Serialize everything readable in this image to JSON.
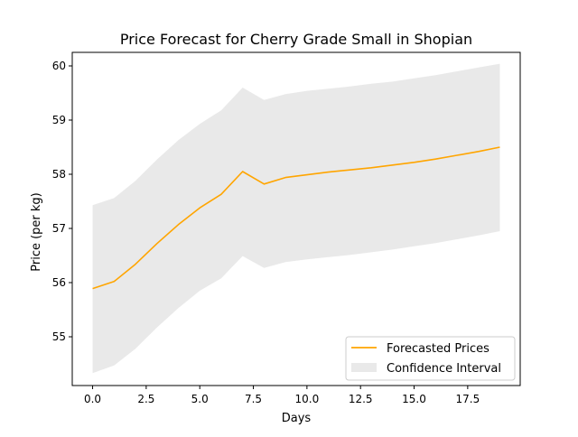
{
  "chart_data": {
    "type": "line",
    "title": "Price Forecast for Cherry Grade Small in Shopian",
    "xlabel": "Days",
    "ylabel": "Price (per kg)",
    "xlim": [
      -0.95,
      19.95
    ],
    "ylim": [
      54.1,
      60.25
    ],
    "x_ticks": [
      0.0,
      2.5,
      5.0,
      7.5,
      10.0,
      12.5,
      15.0,
      17.5
    ],
    "x_tick_labels": [
      "0.0",
      "2.5",
      "5.0",
      "7.5",
      "10.0",
      "12.5",
      "15.0",
      "17.5"
    ],
    "y_ticks": [
      55,
      56,
      57,
      58,
      59,
      60
    ],
    "y_tick_labels": [
      "55",
      "56",
      "57",
      "58",
      "59",
      "60"
    ],
    "grid": false,
    "legend_position": "lower-right",
    "x": [
      0,
      1,
      2,
      3,
      4,
      5,
      6,
      7,
      8,
      9,
      10,
      11,
      12,
      13,
      14,
      15,
      16,
      17,
      18,
      19
    ],
    "series": [
      {
        "name": "Forecasted Prices",
        "type": "line",
        "color": "#ffa500",
        "values": [
          55.89,
          56.02,
          56.34,
          56.72,
          57.07,
          57.38,
          57.63,
          58.05,
          57.82,
          57.94,
          57.99,
          58.04,
          58.08,
          58.12,
          58.17,
          58.22,
          58.28,
          58.35,
          58.42,
          58.5
        ]
      },
      {
        "name": "Confidence Interval",
        "type": "band",
        "color": "#d3d3d3",
        "lower": [
          54.33,
          54.47,
          54.78,
          55.17,
          55.53,
          55.85,
          56.08,
          56.49,
          56.27,
          56.38,
          56.43,
          56.47,
          56.51,
          56.56,
          56.61,
          56.67,
          56.73,
          56.8,
          56.87,
          56.95
        ],
        "upper": [
          57.43,
          57.56,
          57.88,
          58.27,
          58.63,
          58.93,
          59.18,
          59.6,
          59.37,
          59.48,
          59.54,
          59.58,
          59.62,
          59.67,
          59.71,
          59.77,
          59.83,
          59.9,
          59.97,
          60.04
        ]
      }
    ]
  }
}
